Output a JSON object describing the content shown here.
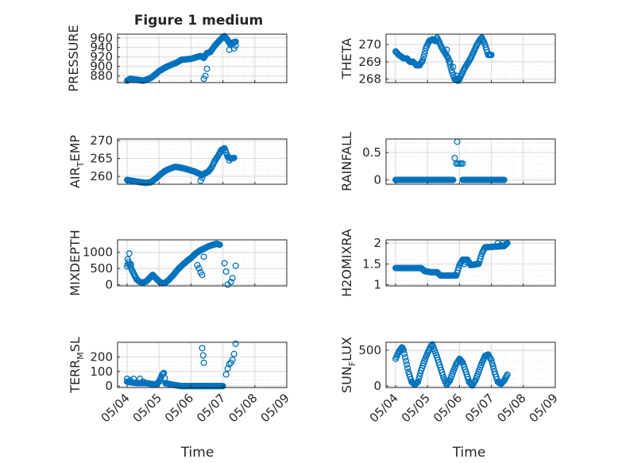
{
  "figure_title": "Figure 1 medium",
  "colors": {
    "marker": "#0072BD",
    "axis": "#262626",
    "grid_major": "#d9d9d9",
    "grid_minor": "#ececec"
  },
  "chart_data": [
    {
      "id": "pressure",
      "type": "scatter",
      "ylabel": "PRESSURE",
      "ylim": [
        866,
        968
      ],
      "yticks": [
        880,
        900,
        920,
        940,
        960
      ],
      "xlim": [
        1.5,
        6.1
      ],
      "anchors": [
        [
          2.0,
          870
        ],
        [
          2.1,
          874
        ],
        [
          2.3,
          872
        ],
        [
          2.5,
          870
        ],
        [
          2.6,
          872
        ],
        [
          2.75,
          876
        ],
        [
          2.9,
          884
        ],
        [
          3.0,
          890
        ],
        [
          3.2,
          898
        ],
        [
          3.4,
          904
        ],
        [
          3.55,
          908
        ],
        [
          3.7,
          914
        ],
        [
          3.85,
          915
        ],
        [
          4.0,
          916
        ],
        [
          4.1,
          918
        ],
        [
          4.2,
          920
        ],
        [
          4.3,
          922
        ],
        [
          4.4,
          918
        ],
        [
          4.5,
          928
        ],
        [
          4.6,
          930
        ],
        [
          4.75,
          944
        ],
        [
          4.9,
          955
        ],
        [
          5.0,
          962
        ],
        [
          5.05,
          964
        ],
        [
          5.15,
          955
        ],
        [
          5.25,
          945
        ],
        [
          5.3,
          950
        ],
        [
          5.4,
          952
        ]
      ],
      "extra": [
        [
          4.4,
          874
        ],
        [
          4.45,
          880
        ],
        [
          4.5,
          895
        ],
        [
          5.2,
          935
        ],
        [
          5.35,
          938
        ],
        [
          5.4,
          944
        ]
      ]
    },
    {
      "id": "theta",
      "type": "scatter",
      "ylabel": "THETA",
      "ylim": [
        267.8,
        270.6
      ],
      "yticks": [
        268,
        269,
        270
      ],
      "xlim": [
        1.5,
        6.1
      ],
      "anchors": [
        [
          2.0,
          269.6
        ],
        [
          2.1,
          269.4
        ],
        [
          2.25,
          269.2
        ],
        [
          2.35,
          269.2
        ],
        [
          2.45,
          269.0
        ],
        [
          2.55,
          269.0
        ],
        [
          2.65,
          268.8
        ],
        [
          2.75,
          268.8
        ],
        [
          2.85,
          269.1
        ],
        [
          2.95,
          269.8
        ],
        [
          3.05,
          270.2
        ],
        [
          3.15,
          270.3
        ],
        [
          3.25,
          270.2
        ],
        [
          3.3,
          270.4
        ],
        [
          3.35,
          270.2
        ],
        [
          3.45,
          269.8
        ],
        [
          3.55,
          269.5
        ],
        [
          3.65,
          269.2
        ],
        [
          3.75,
          268.5
        ],
        [
          3.85,
          268.0
        ],
        [
          3.95,
          267.9
        ],
        [
          4.05,
          268.2
        ],
        [
          4.15,
          268.6
        ],
        [
          4.25,
          268.9
        ],
        [
          4.35,
          269.2
        ],
        [
          4.45,
          269.6
        ],
        [
          4.55,
          270.0
        ],
        [
          4.65,
          270.3
        ],
        [
          4.7,
          270.4
        ],
        [
          4.8,
          270.0
        ],
        [
          4.9,
          269.4
        ],
        [
          5.0,
          269.4
        ]
      ],
      "extra": [
        [
          3.6,
          269.7
        ],
        [
          3.65,
          269.2
        ],
        [
          3.7,
          269.0
        ],
        [
          3.8,
          268.7
        ],
        [
          3.9,
          268.2
        ],
        [
          4.0,
          268.0
        ]
      ]
    },
    {
      "id": "air_temp",
      "type": "scatter",
      "ylabel": "AIR",
      "ylabel_sub": "T",
      "ylabel_tail": "EMP",
      "ylim": [
        257.8,
        270.5
      ],
      "yticks": [
        260,
        265,
        270
      ],
      "xlim": [
        1.5,
        6.1
      ],
      "anchors": [
        [
          2.0,
          259.0
        ],
        [
          2.2,
          258.7
        ],
        [
          2.4,
          258.4
        ],
        [
          2.6,
          258.2
        ],
        [
          2.75,
          258.4
        ],
        [
          2.9,
          259.4
        ],
        [
          3.05,
          260.6
        ],
        [
          3.2,
          261.6
        ],
        [
          3.35,
          262.2
        ],
        [
          3.5,
          262.7
        ],
        [
          3.65,
          262.5
        ],
        [
          3.8,
          262.2
        ],
        [
          3.95,
          261.8
        ],
        [
          4.1,
          261.4
        ],
        [
          4.25,
          260.8
        ],
        [
          4.35,
          260.4
        ],
        [
          4.45,
          260.9
        ],
        [
          4.55,
          261.4
        ],
        [
          4.65,
          262.6
        ],
        [
          4.75,
          264.4
        ],
        [
          4.85,
          265.8
        ],
        [
          4.95,
          267.4
        ],
        [
          5.05,
          267.9
        ],
        [
          5.15,
          265.5
        ],
        [
          5.25,
          265.0
        ],
        [
          5.35,
          265.2
        ]
      ],
      "extra": [
        [
          4.3,
          258.8
        ],
        [
          4.35,
          259.6
        ],
        [
          5.2,
          264.5
        ]
      ]
    },
    {
      "id": "rainfall",
      "type": "scatter",
      "ylabel": "RAINFALL",
      "ylim": [
        -0.08,
        0.75
      ],
      "yticks": [
        0,
        0.5
      ],
      "xlim": [
        1.5,
        6.1
      ],
      "anchors": [
        [
          2.0,
          0
        ],
        [
          3.8,
          0
        ]
      ],
      "anchors2": [
        [
          4.1,
          0
        ],
        [
          5.4,
          0
        ]
      ],
      "extra": [
        [
          3.85,
          0.4
        ],
        [
          3.9,
          0.3
        ],
        [
          3.95,
          0.3
        ],
        [
          4.0,
          0.3
        ],
        [
          4.05,
          0.3
        ],
        [
          4.1,
          0.3
        ],
        [
          3.93,
          0.7
        ]
      ]
    },
    {
      "id": "mixdepth",
      "type": "scatter",
      "ylabel": "MIXDEPTH",
      "ylim": [
        -40,
        1380
      ],
      "yticks": [
        0,
        500,
        1000
      ],
      "xlim": [
        1.5,
        6.1
      ],
      "anchors": [
        [
          2.0,
          560
        ],
        [
          2.05,
          700
        ],
        [
          2.1,
          560
        ],
        [
          2.2,
          350
        ],
        [
          2.3,
          160
        ],
        [
          2.4,
          80
        ],
        [
          2.5,
          60
        ],
        [
          2.6,
          100
        ],
        [
          2.7,
          200
        ],
        [
          2.8,
          300
        ],
        [
          2.9,
          200
        ],
        [
          3.0,
          100
        ],
        [
          3.1,
          40
        ],
        [
          3.2,
          60
        ],
        [
          3.3,
          140
        ],
        [
          3.45,
          300
        ],
        [
          3.6,
          480
        ],
        [
          3.75,
          620
        ],
        [
          3.9,
          750
        ],
        [
          4.0,
          820
        ],
        [
          4.15,
          960
        ],
        [
          4.3,
          1060
        ],
        [
          4.45,
          1130
        ],
        [
          4.55,
          1180
        ],
        [
          4.7,
          1230
        ],
        [
          4.8,
          1260
        ],
        [
          4.9,
          1230
        ]
      ],
      "extra": [
        [
          2.02,
          780
        ],
        [
          2.07,
          960
        ],
        [
          2.12,
          620
        ],
        [
          4.2,
          600
        ],
        [
          4.25,
          500
        ],
        [
          4.3,
          380
        ],
        [
          4.35,
          300
        ],
        [
          4.4,
          860
        ],
        [
          5.05,
          660
        ],
        [
          5.1,
          400
        ],
        [
          5.15,
          0
        ],
        [
          5.25,
          80
        ],
        [
          5.3,
          200
        ],
        [
          5.4,
          580
        ]
      ]
    },
    {
      "id": "h2omixra",
      "type": "scatter",
      "ylabel": "H2OMIXRA",
      "ylim": [
        0.97,
        2.08
      ],
      "yticks": [
        1,
        1.5,
        2
      ],
      "xlim": [
        1.5,
        6.1
      ],
      "anchors": [
        [
          2.0,
          1.4
        ],
        [
          2.8,
          1.4
        ],
        [
          2.9,
          1.33
        ],
        [
          3.1,
          1.3
        ],
        [
          3.3,
          1.3
        ],
        [
          3.4,
          1.22
        ],
        [
          3.9,
          1.22
        ],
        [
          4.0,
          1.47
        ],
        [
          4.1,
          1.6
        ],
        [
          4.25,
          1.6
        ],
        [
          4.35,
          1.47
        ],
        [
          4.6,
          1.5
        ],
        [
          4.7,
          1.75
        ],
        [
          4.8,
          1.9
        ],
        [
          5.4,
          1.93
        ],
        [
          5.5,
          2.0
        ]
      ],
      "extra": [
        [
          4.15,
          1.5
        ],
        [
          4.2,
          1.55
        ],
        [
          5.2,
          2.0
        ],
        [
          5.3,
          1.95
        ],
        [
          5.35,
          2.0
        ]
      ]
    },
    {
      "id": "terr_msl",
      "type": "scatter",
      "ylabel": "TERR",
      "ylabel_sub": "M",
      "ylabel_tail": "SL",
      "ylim": [
        -10,
        300
      ],
      "yticks": [
        0,
        100,
        200
      ],
      "xlim": [
        1.5,
        6.1
      ],
      "anchors": [
        [
          2.0,
          30
        ],
        [
          2.3,
          20
        ],
        [
          2.6,
          20
        ],
        [
          2.9,
          10
        ],
        [
          3.0,
          30
        ],
        [
          3.1,
          80
        ],
        [
          3.15,
          90
        ],
        [
          3.2,
          20
        ],
        [
          3.4,
          10
        ],
        [
          3.7,
          0
        ],
        [
          4.4,
          0
        ],
        [
          5.0,
          0
        ]
      ],
      "extra": [
        [
          2.0,
          50
        ],
        [
          2.1,
          40
        ],
        [
          2.2,
          50
        ],
        [
          2.4,
          50
        ],
        [
          2.5,
          30
        ],
        [
          4.35,
          260
        ],
        [
          4.38,
          210
        ],
        [
          4.4,
          160
        ],
        [
          5.1,
          80
        ],
        [
          5.15,
          120
        ],
        [
          5.2,
          150
        ],
        [
          5.25,
          160
        ],
        [
          5.3,
          180
        ],
        [
          5.35,
          220
        ],
        [
          5.4,
          290
        ]
      ]
    },
    {
      "id": "sun_flux",
      "type": "scatter",
      "ylabel": "SUN",
      "ylabel_sub": "F",
      "ylabel_tail": "LUX",
      "ylim": [
        -20,
        610
      ],
      "yticks": [
        0,
        500
      ],
      "xlim": [
        1.5,
        6.1
      ],
      "anchors": [
        [
          2.0,
          380
        ],
        [
          2.1,
          480
        ],
        [
          2.2,
          540
        ],
        [
          2.25,
          500
        ],
        [
          2.3,
          400
        ],
        [
          2.4,
          200
        ],
        [
          2.5,
          60
        ],
        [
          2.6,
          20
        ],
        [
          2.7,
          60
        ],
        [
          2.8,
          220
        ],
        [
          2.9,
          350
        ],
        [
          3.0,
          460
        ],
        [
          3.1,
          550
        ],
        [
          3.15,
          580
        ],
        [
          3.2,
          520
        ],
        [
          3.3,
          400
        ],
        [
          3.4,
          260
        ],
        [
          3.5,
          120
        ],
        [
          3.6,
          20
        ],
        [
          3.7,
          80
        ],
        [
          3.8,
          200
        ],
        [
          3.9,
          310
        ],
        [
          4.0,
          380
        ],
        [
          4.1,
          330
        ],
        [
          4.2,
          200
        ],
        [
          4.3,
          60
        ],
        [
          4.4,
          10
        ],
        [
          4.5,
          80
        ],
        [
          4.6,
          200
        ],
        [
          4.7,
          320
        ],
        [
          4.8,
          420
        ],
        [
          4.9,
          440
        ],
        [
          5.0,
          360
        ],
        [
          5.1,
          200
        ],
        [
          5.2,
          60
        ],
        [
          5.3,
          30
        ],
        [
          5.4,
          80
        ],
        [
          5.5,
          160
        ]
      ],
      "extra": []
    }
  ],
  "x_axis": {
    "label": "Time",
    "ticks": [
      [
        "05/04",
        2
      ],
      [
        "05/05",
        3
      ],
      [
        "05/06",
        4
      ],
      [
        "05/07",
        5
      ],
      [
        "05/08",
        6
      ],
      [
        "05/09",
        7
      ]
    ]
  }
}
